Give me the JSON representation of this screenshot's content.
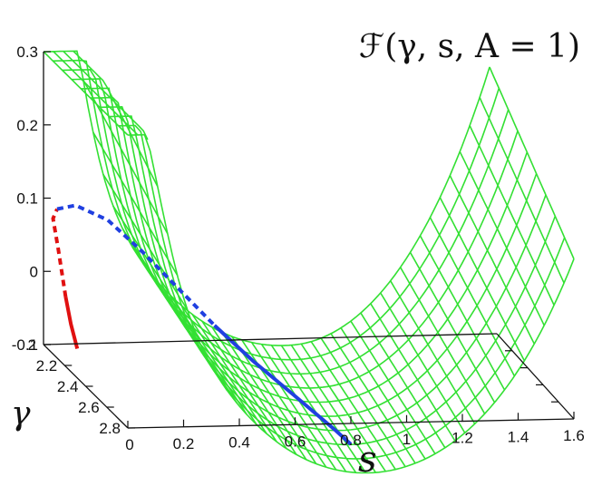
{
  "chart_data": {
    "type": "surface",
    "title": "ℱ(γ, s, A = 1)",
    "xlabel": "s",
    "ylabel": "γ",
    "zlabel": "",
    "xlim": [
      0,
      1.6
    ],
    "ylim": [
      2,
      2.8
    ],
    "zlim": [
      -0.1,
      0.3
    ],
    "x_ticks": [
      "0",
      "0.2",
      "0.4",
      "0.6",
      "0.8",
      "1",
      "1.2",
      "1.4",
      "1.6"
    ],
    "y_ticks": [
      "2",
      "2.2",
      "2.4",
      "2.6",
      "2.8"
    ],
    "z_ticks": [
      "-0.1",
      "0",
      "0.1",
      "0.2",
      "0.3"
    ],
    "surface_color": "#33e033",
    "series": [
      {
        "style": "solid",
        "color": "#e01010",
        "points": [
          [
            0.0,
            2.32,
            -0.06
          ],
          [
            0.0,
            2.26,
            -0.035
          ],
          [
            0.0,
            2.21,
            -0.005
          ]
        ]
      },
      {
        "style": "dashed",
        "color": "#e01010",
        "points": [
          [
            0.0,
            2.21,
            -0.005
          ],
          [
            0.0,
            2.14,
            0.05
          ],
          [
            0.0,
            2.09,
            0.085
          ],
          [
            0.03,
            2.05,
            0.092
          ]
        ]
      },
      {
        "style": "dashed",
        "color": "#2040e0",
        "points": [
          [
            0.03,
            2.05,
            0.092
          ],
          [
            0.1,
            2.04,
            0.095
          ],
          [
            0.2,
            2.08,
            0.08
          ],
          [
            0.3,
            2.14,
            0.045
          ],
          [
            0.4,
            2.22,
            0.005
          ],
          [
            0.5,
            2.3,
            -0.035
          ]
        ]
      },
      {
        "style": "solid",
        "color": "#2040e0",
        "points": [
          [
            0.5,
            2.3,
            -0.035
          ],
          [
            0.6,
            2.4,
            -0.07
          ],
          [
            0.7,
            2.52,
            -0.1
          ],
          [
            0.8,
            2.66,
            -0.13
          ],
          [
            0.83,
            2.72,
            -0.14
          ]
        ]
      }
    ]
  }
}
